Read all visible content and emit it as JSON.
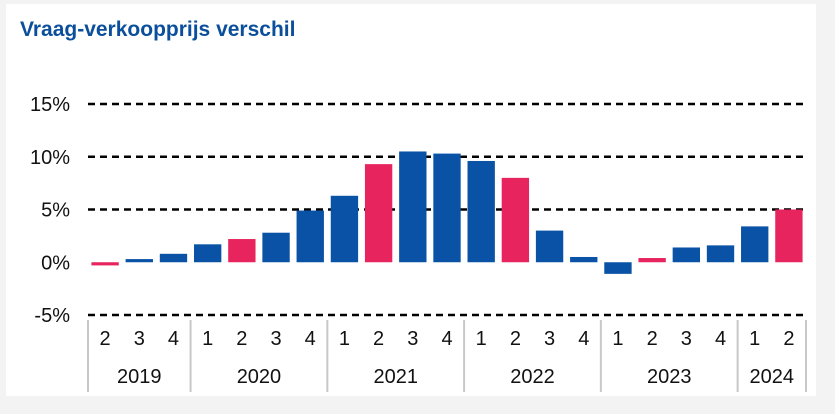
{
  "chart_data": {
    "type": "bar",
    "title": "Vraag-verkoopprijs verschil",
    "xlabel": "",
    "ylabel": "",
    "ylim": [
      -5,
      15
    ],
    "y_ticks": [
      "15%",
      "10%",
      "5%",
      "0%",
      "-5%"
    ],
    "y_tick_values": [
      15,
      10,
      5,
      0,
      -5
    ],
    "grid": true,
    "grid_style": "dashed",
    "colors": {
      "standard": "#0a52a5",
      "highlight": "#e8245f",
      "title": "#0b4f9c",
      "axis_separator": "#c8c8c8"
    },
    "categories": [
      "2",
      "3",
      "4",
      "1",
      "2",
      "3",
      "4",
      "1",
      "2",
      "3",
      "4",
      "1",
      "2",
      "3",
      "4",
      "1",
      "2",
      "3",
      "4",
      "1",
      "2"
    ],
    "values": [
      -0.3,
      0.3,
      0.8,
      1.7,
      2.2,
      2.8,
      4.9,
      6.3,
      9.3,
      10.5,
      10.3,
      9.6,
      8.0,
      3.0,
      0.5,
      -1.1,
      0.4,
      1.4,
      1.6,
      3.4,
      5.0
    ],
    "highlight": [
      true,
      false,
      false,
      false,
      true,
      false,
      false,
      false,
      true,
      false,
      false,
      false,
      true,
      false,
      false,
      false,
      true,
      false,
      false,
      false,
      true
    ],
    "groups": [
      {
        "label": "2019",
        "count": 3
      },
      {
        "label": "2020",
        "count": 4
      },
      {
        "label": "2021",
        "count": 4
      },
      {
        "label": "2022",
        "count": 4
      },
      {
        "label": "2023",
        "count": 4
      },
      {
        "label": "2024",
        "count": 2
      }
    ]
  }
}
